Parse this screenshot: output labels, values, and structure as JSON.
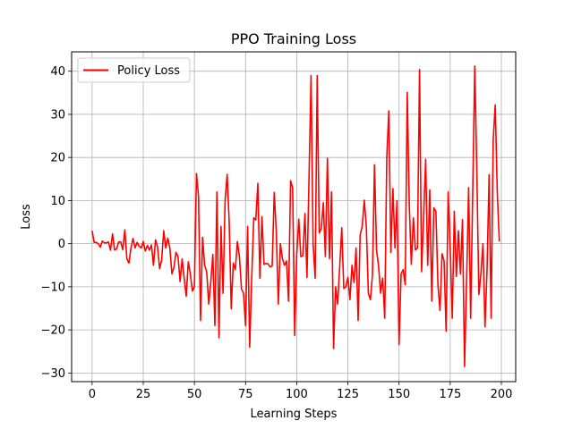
{
  "chart_data": {
    "type": "line",
    "title": "PPO Training Loss",
    "xlabel": "Learning Steps",
    "ylabel": "Loss",
    "xlim": [
      -10,
      207
    ],
    "ylim": [
      -32,
      44.5
    ],
    "xticks": [
      0,
      25,
      50,
      75,
      100,
      125,
      150,
      175,
      200
    ],
    "yticks": [
      -30,
      -20,
      -10,
      0,
      10,
      20,
      30,
      40
    ],
    "grid": true,
    "legend_position": "top-left",
    "series": [
      {
        "name": "Policy Loss",
        "color": "#ff0000",
        "y": [
          3.0,
          0.3,
          0.3,
          0.0,
          -0.8,
          0.6,
          0.2,
          0.2,
          0.4,
          -1.5,
          2.3,
          -1.5,
          -1.2,
          0.4,
          0.4,
          -1.4,
          3.2,
          -3.5,
          -4.5,
          -1.0,
          1.2,
          -1.0,
          0.3,
          -0.6,
          -1.0,
          0.5,
          -1.7,
          -0.4,
          -1.5,
          -0.3,
          -5.0,
          0.9,
          -0.8,
          -5.8,
          -3.8,
          3.0,
          -1.0,
          1.3,
          -1.0,
          -7.0,
          -5.5,
          -2.0,
          -3.0,
          -8.8,
          -3.5,
          -8.0,
          -12.2,
          -4.2,
          -7.0,
          -11.0,
          -10.0,
          16.3,
          11.0,
          -17.8,
          1.5,
          -5.0,
          -6.5,
          -14.0,
          -9.0,
          -2.5,
          -19.0,
          12.0,
          -21.8,
          4.0,
          -11.5,
          10.0,
          16.1,
          5.0,
          -15.1,
          -4.5,
          -6.0,
          0.5,
          -3.0,
          -10.5,
          -11.5,
          -19.0,
          4.0,
          -24.0,
          -8.0,
          6.0,
          5.5,
          14.0,
          -8.0,
          6.3,
          -4.8,
          -4.6,
          -4.7,
          -5.4,
          -5.2,
          11.9,
          3.0,
          -14.0,
          0.0,
          -3.5,
          -5.0,
          -4.0,
          -13.3,
          14.6,
          13.0,
          -21.3,
          -2.5,
          5.7,
          -3.0,
          -2.8,
          7.0,
          -7.8,
          15.0,
          39.0,
          0.0,
          -8.0,
          39.0,
          2.5,
          3.5,
          9.5,
          -3.0,
          19.8,
          -3.5,
          12.0,
          -24.3,
          -10.0,
          -14.0,
          -5.3,
          3.7,
          -10.4,
          -10.0,
          -7.8,
          -13.0,
          -5.0,
          -9.0,
          -1.0,
          -17.8,
          2.0,
          4.0,
          10.1,
          4.0,
          -11.5,
          -13.0,
          -7.3,
          18.3,
          -1.5,
          -5.2,
          -11.5,
          -8.0,
          -17.3,
          20.0,
          30.8,
          -2.0,
          12.8,
          -1.0,
          10.0,
          -23.4,
          -7.0,
          -6.0,
          -9.5,
          35.1,
          9.0,
          -4.8,
          6.0,
          -1.5,
          -1.0,
          40.4,
          -6.5,
          6.0,
          19.6,
          -5.0,
          12.5,
          -13.3,
          8.3,
          7.5,
          -9.5,
          -15.5,
          -2.3,
          -4.0,
          -20.3,
          12.0,
          -1.0,
          -17.3,
          7.5,
          -7.6,
          3.0,
          -7.0,
          5.6,
          -28.5,
          -9.0,
          13.0,
          -17.3,
          12.0,
          41.2,
          17.0,
          -11.8,
          -7.0,
          0.0,
          -19.3,
          -6.0,
          16.0,
          -17.3,
          24.0,
          32.2,
          12.0,
          0.5
        ]
      }
    ]
  }
}
